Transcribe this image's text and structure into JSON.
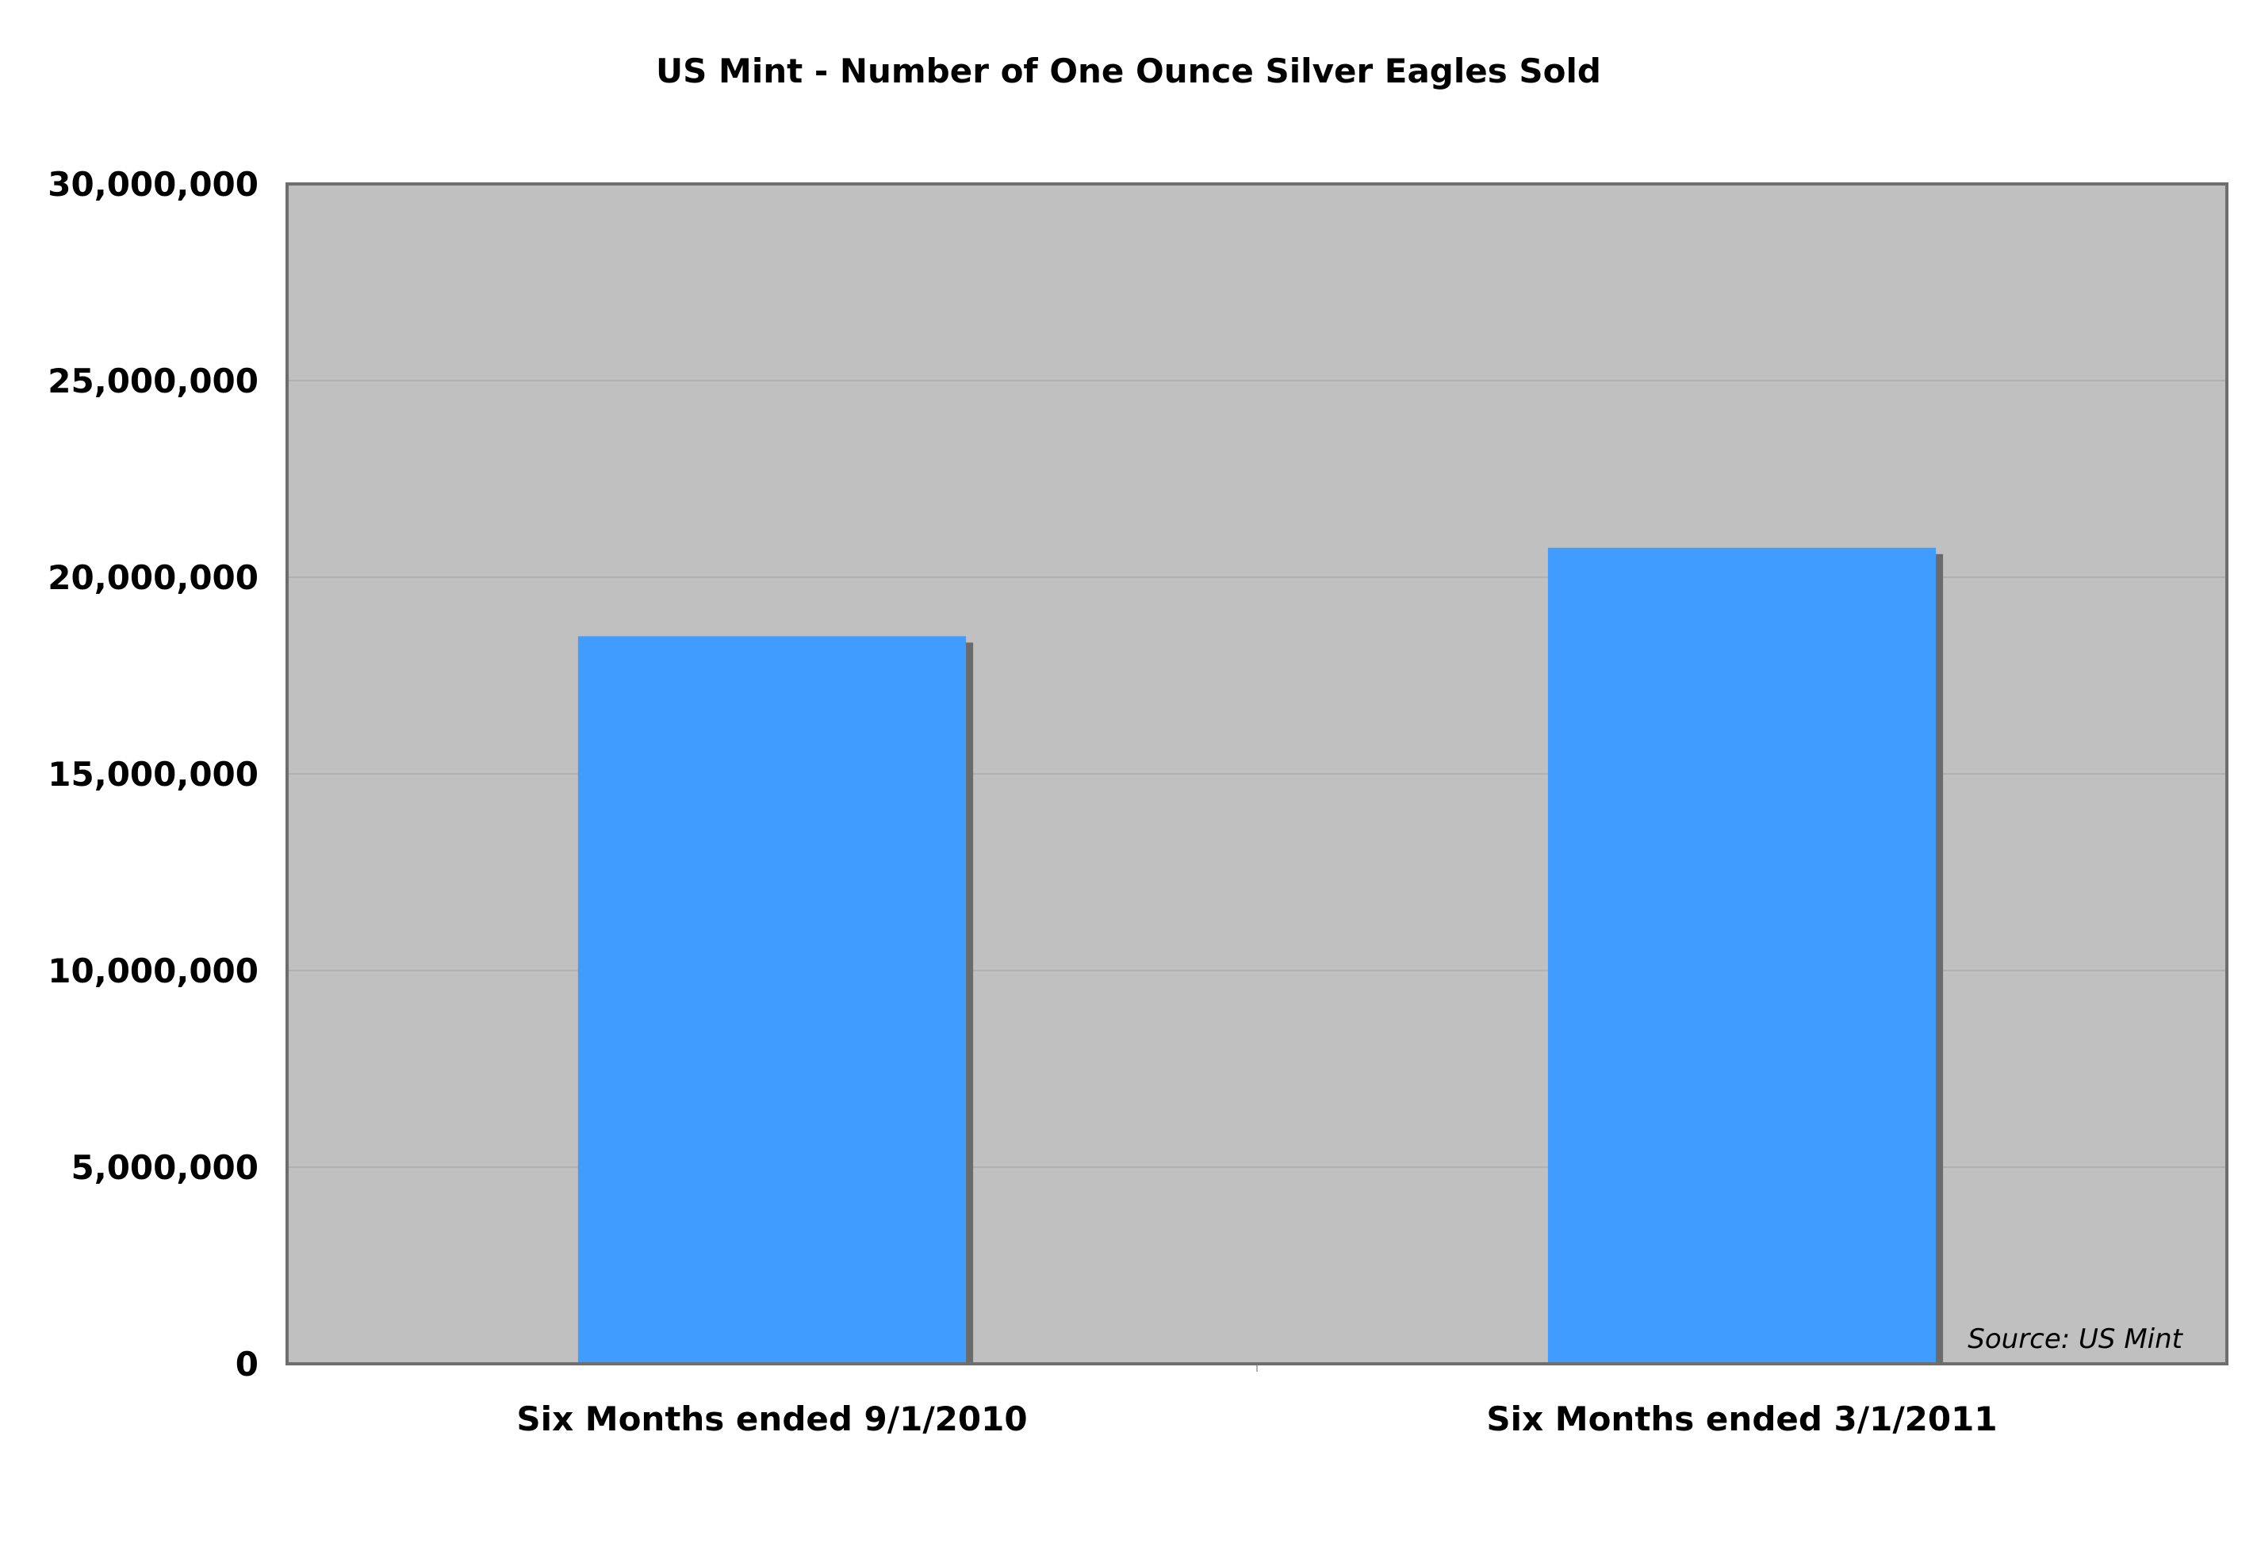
{
  "chart_data": {
    "type": "bar",
    "title": "US Mint - Number of One Ounce Silver Eagles Sold",
    "categories": [
      "Six Months ended 9/1/2010",
      "Six Months ended 3/1/2011"
    ],
    "values": [
      18500000,
      20750000
    ],
    "ylim": [
      0,
      30000000
    ],
    "yticks": [
      0,
      5000000,
      10000000,
      15000000,
      20000000,
      25000000,
      30000000
    ],
    "ytick_labels": [
      "0",
      "5,000,000",
      "10,000,000",
      "15,000,000",
      "20,000,000",
      "25,000,000",
      "30,000,000"
    ],
    "xlabel": "",
    "ylabel": "",
    "grid": true,
    "annotation": "Source: US Mint",
    "colors": {
      "bar": "#409cff",
      "bar_shadow": "#6b6b6b",
      "plot_background": "#c0c0c0",
      "plot_border": "#6e6e6e",
      "gridline": "#b0b0b0"
    }
  }
}
